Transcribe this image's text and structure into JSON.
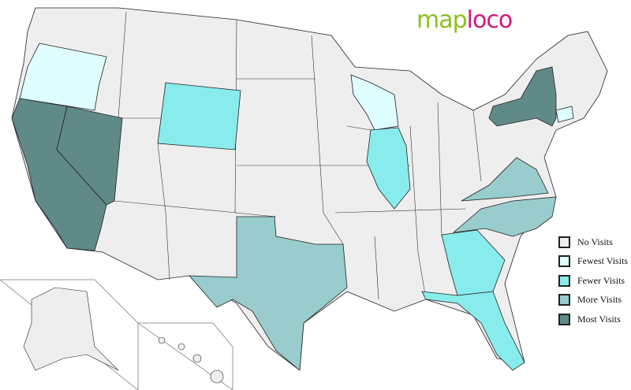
{
  "logo": {
    "part1": "map",
    "part2": "loco"
  },
  "legend": [
    {
      "label": "No Visits",
      "color": "#eeeeee"
    },
    {
      "label": "Fewest Visits",
      "color": "#dffefe"
    },
    {
      "label": "Fewer Visits",
      "color": "#88eced"
    },
    {
      "label": "More Visits",
      "color": "#99cccc"
    },
    {
      "label": "Most Visits",
      "color": "#5f8a88"
    }
  ],
  "states": {
    "Oregon": "Fewest Visits",
    "California": "Most Visits",
    "Nevada": "Most Visits",
    "Wyoming": "Fewer Visits",
    "Wisconsin": "Fewest Visits",
    "Illinois": "Fewer Visits",
    "New York": "Most Visits",
    "Connecticut": "Fewest Visits",
    "Texas": "More Visits",
    "Virginia": "More Visits",
    "North Carolina": "More Visits",
    "Georgia": "Fewer Visits",
    "Florida": "Fewer Visits"
  }
}
